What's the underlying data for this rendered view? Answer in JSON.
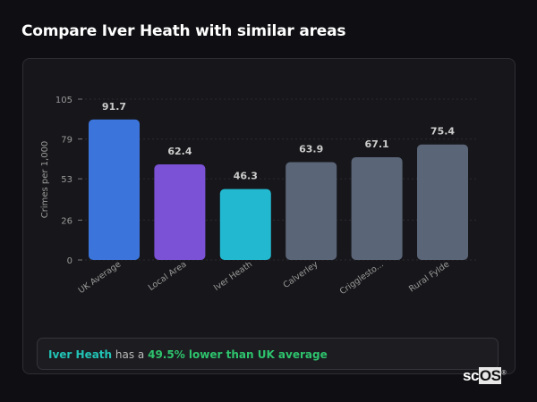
{
  "title": "Compare Iver Heath with similar areas",
  "chart_data": {
    "type": "bar",
    "title": "",
    "xlabel": "",
    "ylabel": "Crimes per 1,000",
    "categories": [
      "UK Average",
      "Local Area",
      "Iver Heath",
      "Calverley",
      "Crigglesto...",
      "Rural Fylde"
    ],
    "values": [
      91.7,
      62.4,
      46.3,
      63.9,
      67.1,
      75.4
    ],
    "value_labels": [
      "91.7",
      "62.4",
      "46.3",
      "63.9",
      "67.1",
      "75.4"
    ],
    "colors": [
      "#3b74db",
      "#7b52d6",
      "#22b8d0",
      "#5a6578",
      "#5a6578",
      "#5a6578"
    ],
    "ylim": [
      0,
      105
    ],
    "yticks": [
      0,
      26,
      53,
      79,
      105
    ],
    "grid": true,
    "legend": "none"
  },
  "footer": {
    "area": "Iver Heath",
    "middle": " has a ",
    "comparison": "49.5% lower than UK average"
  },
  "logo": {
    "text_a": "sc",
    "text_b": "OS",
    "mark": "®"
  }
}
